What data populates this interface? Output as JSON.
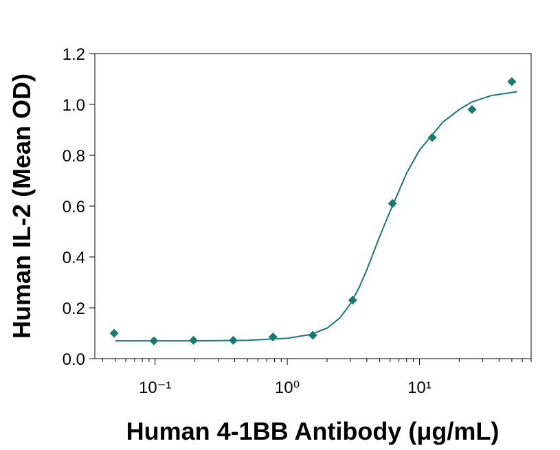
{
  "chart_data": {
    "type": "scatter",
    "x_label": "Human 4-1BB  Antibody (μg/mL)",
    "y_label": "Human IL-2 (Mean OD)",
    "x": [
      0.049,
      0.098,
      0.195,
      0.39,
      0.78,
      1.56,
      3.125,
      6.25,
      12.5,
      25,
      50
    ],
    "values": [
      0.1,
      0.07,
      0.072,
      0.072,
      0.085,
      0.092,
      0.23,
      0.61,
      0.87,
      0.98,
      1.09
    ],
    "color": "#177a72",
    "fit": {
      "x": [
        0.05,
        0.1,
        0.2,
        0.5,
        1,
        1.5,
        2,
        2.5,
        3,
        3.5,
        4,
        5,
        6,
        7,
        8,
        10,
        12.5,
        15,
        20,
        25,
        35,
        55
      ],
      "values": [
        0.07,
        0.07,
        0.07,
        0.072,
        0.08,
        0.095,
        0.12,
        0.16,
        0.215,
        0.28,
        0.35,
        0.48,
        0.58,
        0.66,
        0.73,
        0.82,
        0.88,
        0.93,
        0.98,
        1.01,
        1.035,
        1.05
      ]
    },
    "xlim": [
      0.035,
      70
    ],
    "log_x": true,
    "minor_x_ticks": true,
    "xticks": [
      {
        "value": 0.1,
        "label": "10⁻¹"
      },
      {
        "value": 1,
        "label": "10⁰"
      },
      {
        "value": 10,
        "label": "10¹"
      }
    ],
    "ylim": [
      0,
      1.2
    ],
    "yticks": [
      {
        "value": 0,
        "label": "0.0"
      },
      0.2,
      0.4,
      0.6,
      0.8,
      {
        "value": 1,
        "label": "1.0"
      },
      1.2
    ]
  }
}
